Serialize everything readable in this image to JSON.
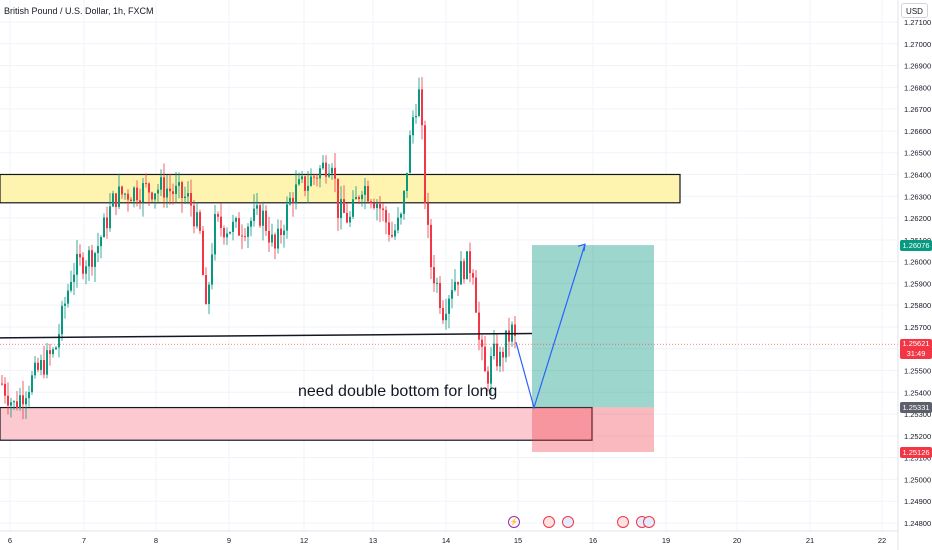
{
  "header": {
    "title": "British Pound / U.S. Dollar, 1h, FXCM",
    "currency": "USD"
  },
  "chart_data": {
    "type": "candlestick",
    "ylim": [
      1.2475,
      1.2715
    ],
    "y_ticks": [
      "1.27100",
      "1.27000",
      "1.26900",
      "1.26800",
      "1.26700",
      "1.26600",
      "1.26500",
      "1.26400",
      "1.26300",
      "1.26200",
      "1.26100",
      "1.26000",
      "1.25900",
      "1.25800",
      "1.25700",
      "1.25600",
      "1.25500",
      "1.25400",
      "1.25300",
      "1.25200",
      "1.25100",
      "1.25000",
      "1.24900",
      "1.24800"
    ],
    "x_ticks": [
      "6",
      "7",
      "8",
      "9",
      "12",
      "13",
      "14",
      "15",
      "16",
      "19",
      "20",
      "21",
      "22"
    ],
    "price_labels": {
      "target": {
        "text": "1.26076",
        "color": "#089981"
      },
      "current": {
        "text": "1.25621",
        "countdown": "31:49",
        "color": "#f23645"
      },
      "entry": {
        "text": "1.25331",
        "color": "#5d606b"
      },
      "stop": {
        "text": "1.25126",
        "color": "#f23645"
      }
    },
    "zones": [
      {
        "name": "resistance-zone",
        "top": 1.264,
        "bottom": 1.2627,
        "fill": "#fff3b0"
      },
      {
        "name": "support-zone",
        "top": 1.2533,
        "bottom": 1.2518,
        "fill": "#fbc9cf"
      }
    ],
    "trend_line": {
      "from": 1.2565,
      "to": 1.2567
    },
    "position": {
      "target": 1.26076,
      "entry": 1.25331,
      "stop": 1.25126
    },
    "projection_path": [
      1.2563,
      1.2533,
      1.2608
    ],
    "colors": {
      "up": "#089981",
      "down": "#f23645"
    },
    "annotation": "need double bottom for long"
  }
}
